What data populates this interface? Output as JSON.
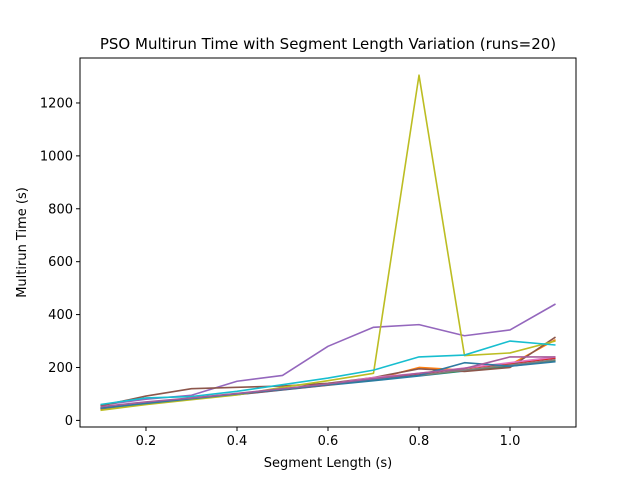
{
  "chart_data": {
    "type": "line",
    "title": "PSO Multirun Time with Segment Length Variation (runs=20)",
    "xlabel": "Segment Length (s)",
    "ylabel": "Multirun Time (s)",
    "xlim": [
      0.055,
      1.145
    ],
    "ylim": [
      -25,
      1370
    ],
    "xticks": [
      0.2,
      0.4,
      0.6,
      0.8,
      1.0
    ],
    "xtick_labels": [
      "0.2",
      "0.4",
      "0.6",
      "0.8",
      "1.0"
    ],
    "yticks": [
      0,
      200,
      400,
      600,
      800,
      1000,
      1200
    ],
    "ytick_labels": [
      "0",
      "200",
      "400",
      "600",
      "800",
      "1000",
      "1200"
    ],
    "grid": false,
    "legend": "none",
    "x": [
      0.1,
      0.2,
      0.3,
      0.4,
      0.5,
      0.6,
      0.7,
      0.8,
      0.9,
      1.0,
      1.1
    ],
    "series": [
      {
        "color": "#1f77b4",
        "values": [
          42,
          62,
          80,
          97,
          115,
          133,
          150,
          168,
          187,
          205,
          225
        ]
      },
      {
        "color": "#ff7f0e",
        "values": [
          43,
          63,
          81,
          98,
          117,
          134,
          155,
          200,
          190,
          210,
          305
        ]
      },
      {
        "color": "#2ca02c",
        "values": [
          48,
          65,
          82,
          100,
          118,
          135,
          152,
          170,
          188,
          208,
          227
        ]
      },
      {
        "color": "#d62728",
        "values": [
          44,
          63,
          80,
          98,
          116,
          134,
          156,
          175,
          197,
          215,
          235
        ]
      },
      {
        "color": "#9467bd",
        "values": [
          58,
          80,
          95,
          148,
          170,
          280,
          352,
          362,
          320,
          342,
          440
        ]
      },
      {
        "color": "#8c564b",
        "values": [
          55,
          92,
          120,
          125,
          130,
          140,
          162,
          195,
          185,
          200,
          315
        ]
      },
      {
        "color": "#e377c2",
        "values": [
          47,
          66,
          83,
          101,
          118,
          137,
          162,
          178,
          198,
          218,
          240
        ]
      },
      {
        "color": "#7f7f7f",
        "values": [
          45,
          64,
          81,
          100,
          117,
          135,
          153,
          170,
          190,
          209,
          229
        ]
      },
      {
        "color": "#bcbd22",
        "values": [
          38,
          60,
          78,
          96,
          125,
          150,
          178,
          1305,
          245,
          255,
          300
        ]
      },
      {
        "color": "#17becf",
        "values": [
          60,
          85,
          90,
          110,
          135,
          160,
          190,
          240,
          247,
          300,
          285
        ]
      },
      {
        "color": "#2f7aa1",
        "values": [
          46,
          64,
          82,
          100,
          117,
          135,
          152,
          170,
          218,
          205,
          222
        ]
      },
      {
        "color": "#a65d9b",
        "values": [
          52,
          70,
          85,
          102,
          120,
          138,
          158,
          178,
          196,
          240,
          240
        ]
      }
    ]
  }
}
